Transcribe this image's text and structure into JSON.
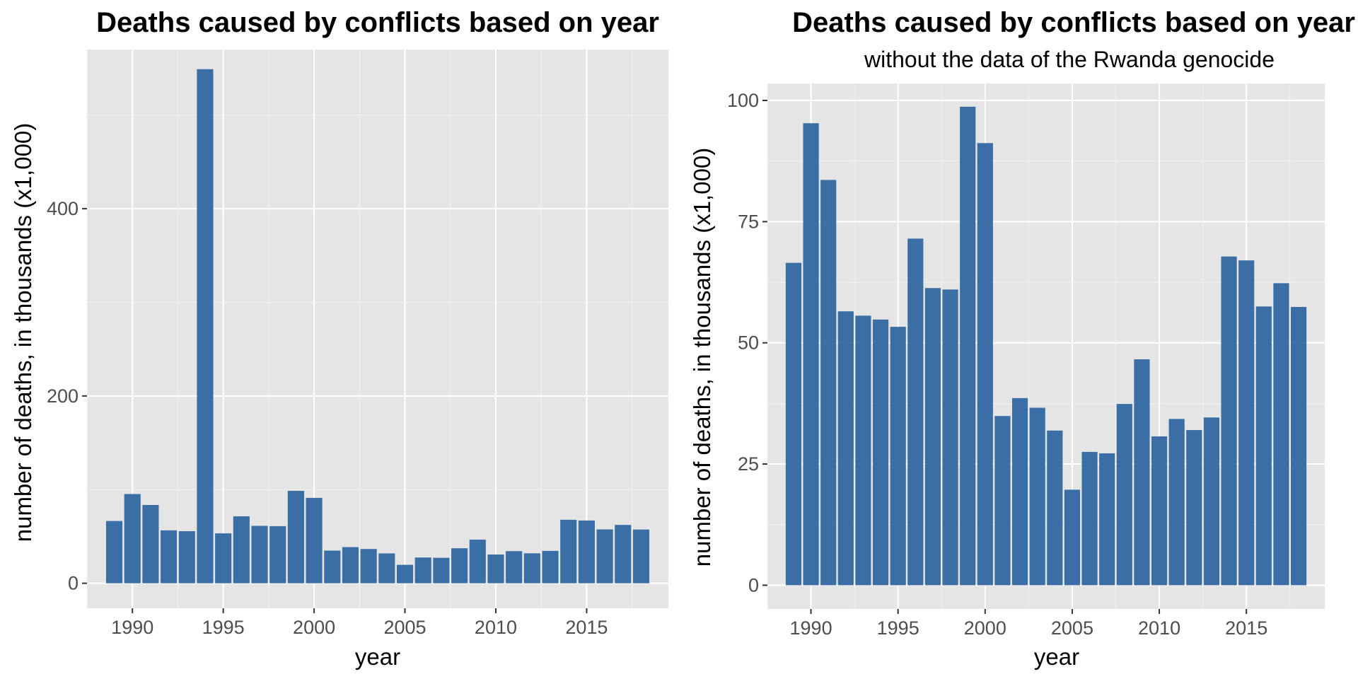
{
  "chart_data": [
    {
      "type": "bar",
      "title": "Deaths caused by conflicts based on year",
      "subtitle": "",
      "xlabel": "year",
      "ylabel": "number of deaths, in thousands (x1,000)",
      "xlim": [
        1987.5,
        2019.5
      ],
      "ylim": [
        -26.7,
        570
      ],
      "grid": true,
      "bar_color": "#3a6ea5",
      "panel_color": "#e5e5e5",
      "x_ticks": [
        1990,
        1995,
        2000,
        2005,
        2010,
        2015
      ],
      "x_tick_labels": [
        "1990",
        "1995",
        "2000",
        "2005",
        "2010",
        "2015"
      ],
      "y_ticks": [
        0,
        200,
        400
      ],
      "y_tick_labels": [
        "0",
        "200",
        "400"
      ],
      "x": [
        1989,
        1990,
        1991,
        1992,
        1993,
        1994,
        1995,
        1996,
        1997,
        1998,
        1999,
        2000,
        2001,
        2002,
        2003,
        2004,
        2005,
        2006,
        2007,
        2008,
        2009,
        2010,
        2011,
        2012,
        2013,
        2014,
        2015,
        2016,
        2017,
        2018
      ],
      "values": [
        66.5,
        95.3,
        83.6,
        56.5,
        55.6,
        549,
        53.3,
        71.5,
        61.3,
        61.0,
        98.7,
        91.2,
        34.9,
        38.6,
        36.6,
        31.9,
        19.7,
        27.5,
        27.2,
        37.4,
        46.6,
        30.7,
        34.3,
        32.0,
        34.6,
        67.8,
        67.0,
        57.5,
        62.3,
        57.4
      ]
    },
    {
      "type": "bar",
      "title": "Deaths caused by conflicts based on year",
      "subtitle": "without the data of the Rwanda genocide",
      "xlabel": "year",
      "ylabel": "number of deaths, in thousands (x1,000)",
      "xlim": [
        1987.5,
        2019.5
      ],
      "ylim": [
        -4.9,
        103.5
      ],
      "grid": true,
      "bar_color": "#3a6ea5",
      "panel_color": "#e5e5e5",
      "x_ticks": [
        1990,
        1995,
        2000,
        2005,
        2010,
        2015
      ],
      "x_tick_labels": [
        "1990",
        "1995",
        "2000",
        "2005",
        "2010",
        "2015"
      ],
      "y_ticks": [
        0,
        25,
        50,
        75,
        100
      ],
      "y_tick_labels": [
        "0",
        "25",
        "50",
        "75",
        "100"
      ],
      "x": [
        1989,
        1990,
        1991,
        1992,
        1993,
        1994,
        1995,
        1996,
        1997,
        1998,
        1999,
        2000,
        2001,
        2002,
        2003,
        2004,
        2005,
        2006,
        2007,
        2008,
        2009,
        2010,
        2011,
        2012,
        2013,
        2014,
        2015,
        2016,
        2017,
        2018
      ],
      "values": [
        66.5,
        95.3,
        83.6,
        56.5,
        55.6,
        54.8,
        53.3,
        71.5,
        61.3,
        61.0,
        98.7,
        91.2,
        34.9,
        38.6,
        36.6,
        31.9,
        19.7,
        27.5,
        27.2,
        37.4,
        46.6,
        30.7,
        34.3,
        32.0,
        34.6,
        67.8,
        67.0,
        57.5,
        62.3,
        57.4
      ]
    }
  ]
}
